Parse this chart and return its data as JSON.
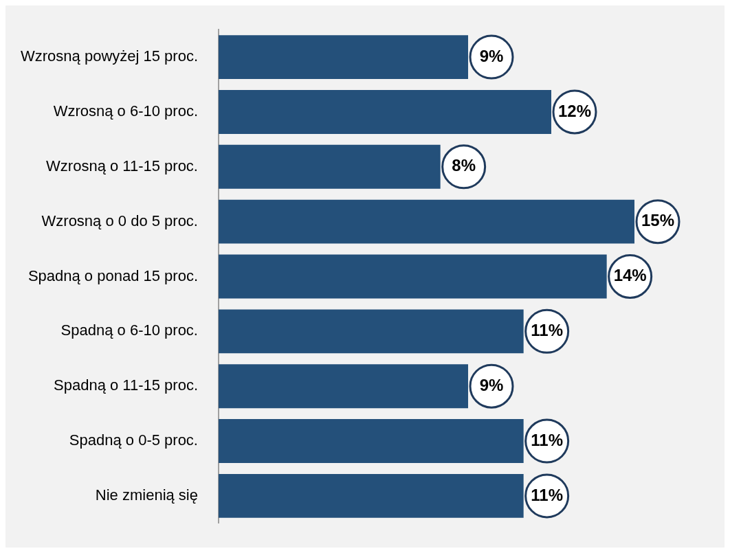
{
  "chart_data": {
    "type": "bar",
    "orientation": "horizontal",
    "categories": [
      "Wzrosną powyżej 15 proc.",
      "Wzrosną o 6-10 proc.",
      "Wzrosną o 11-15 proc.",
      "Wzrosną o 0 do 5 proc.",
      "Spadną o ponad 15 proc.",
      "Spadną o 6-10 proc.",
      "Spadną o 11-15 proc.",
      "Spadną o 0-5 proc.",
      "Nie zmienią się"
    ],
    "values": [
      9,
      12,
      8,
      15,
      14,
      11,
      9,
      11,
      11
    ],
    "value_labels": [
      "9%",
      "12%",
      "8%",
      "15%",
      "14%",
      "11%",
      "9%",
      "11%",
      "11%"
    ],
    "color": "#24507a",
    "legend": false
  }
}
